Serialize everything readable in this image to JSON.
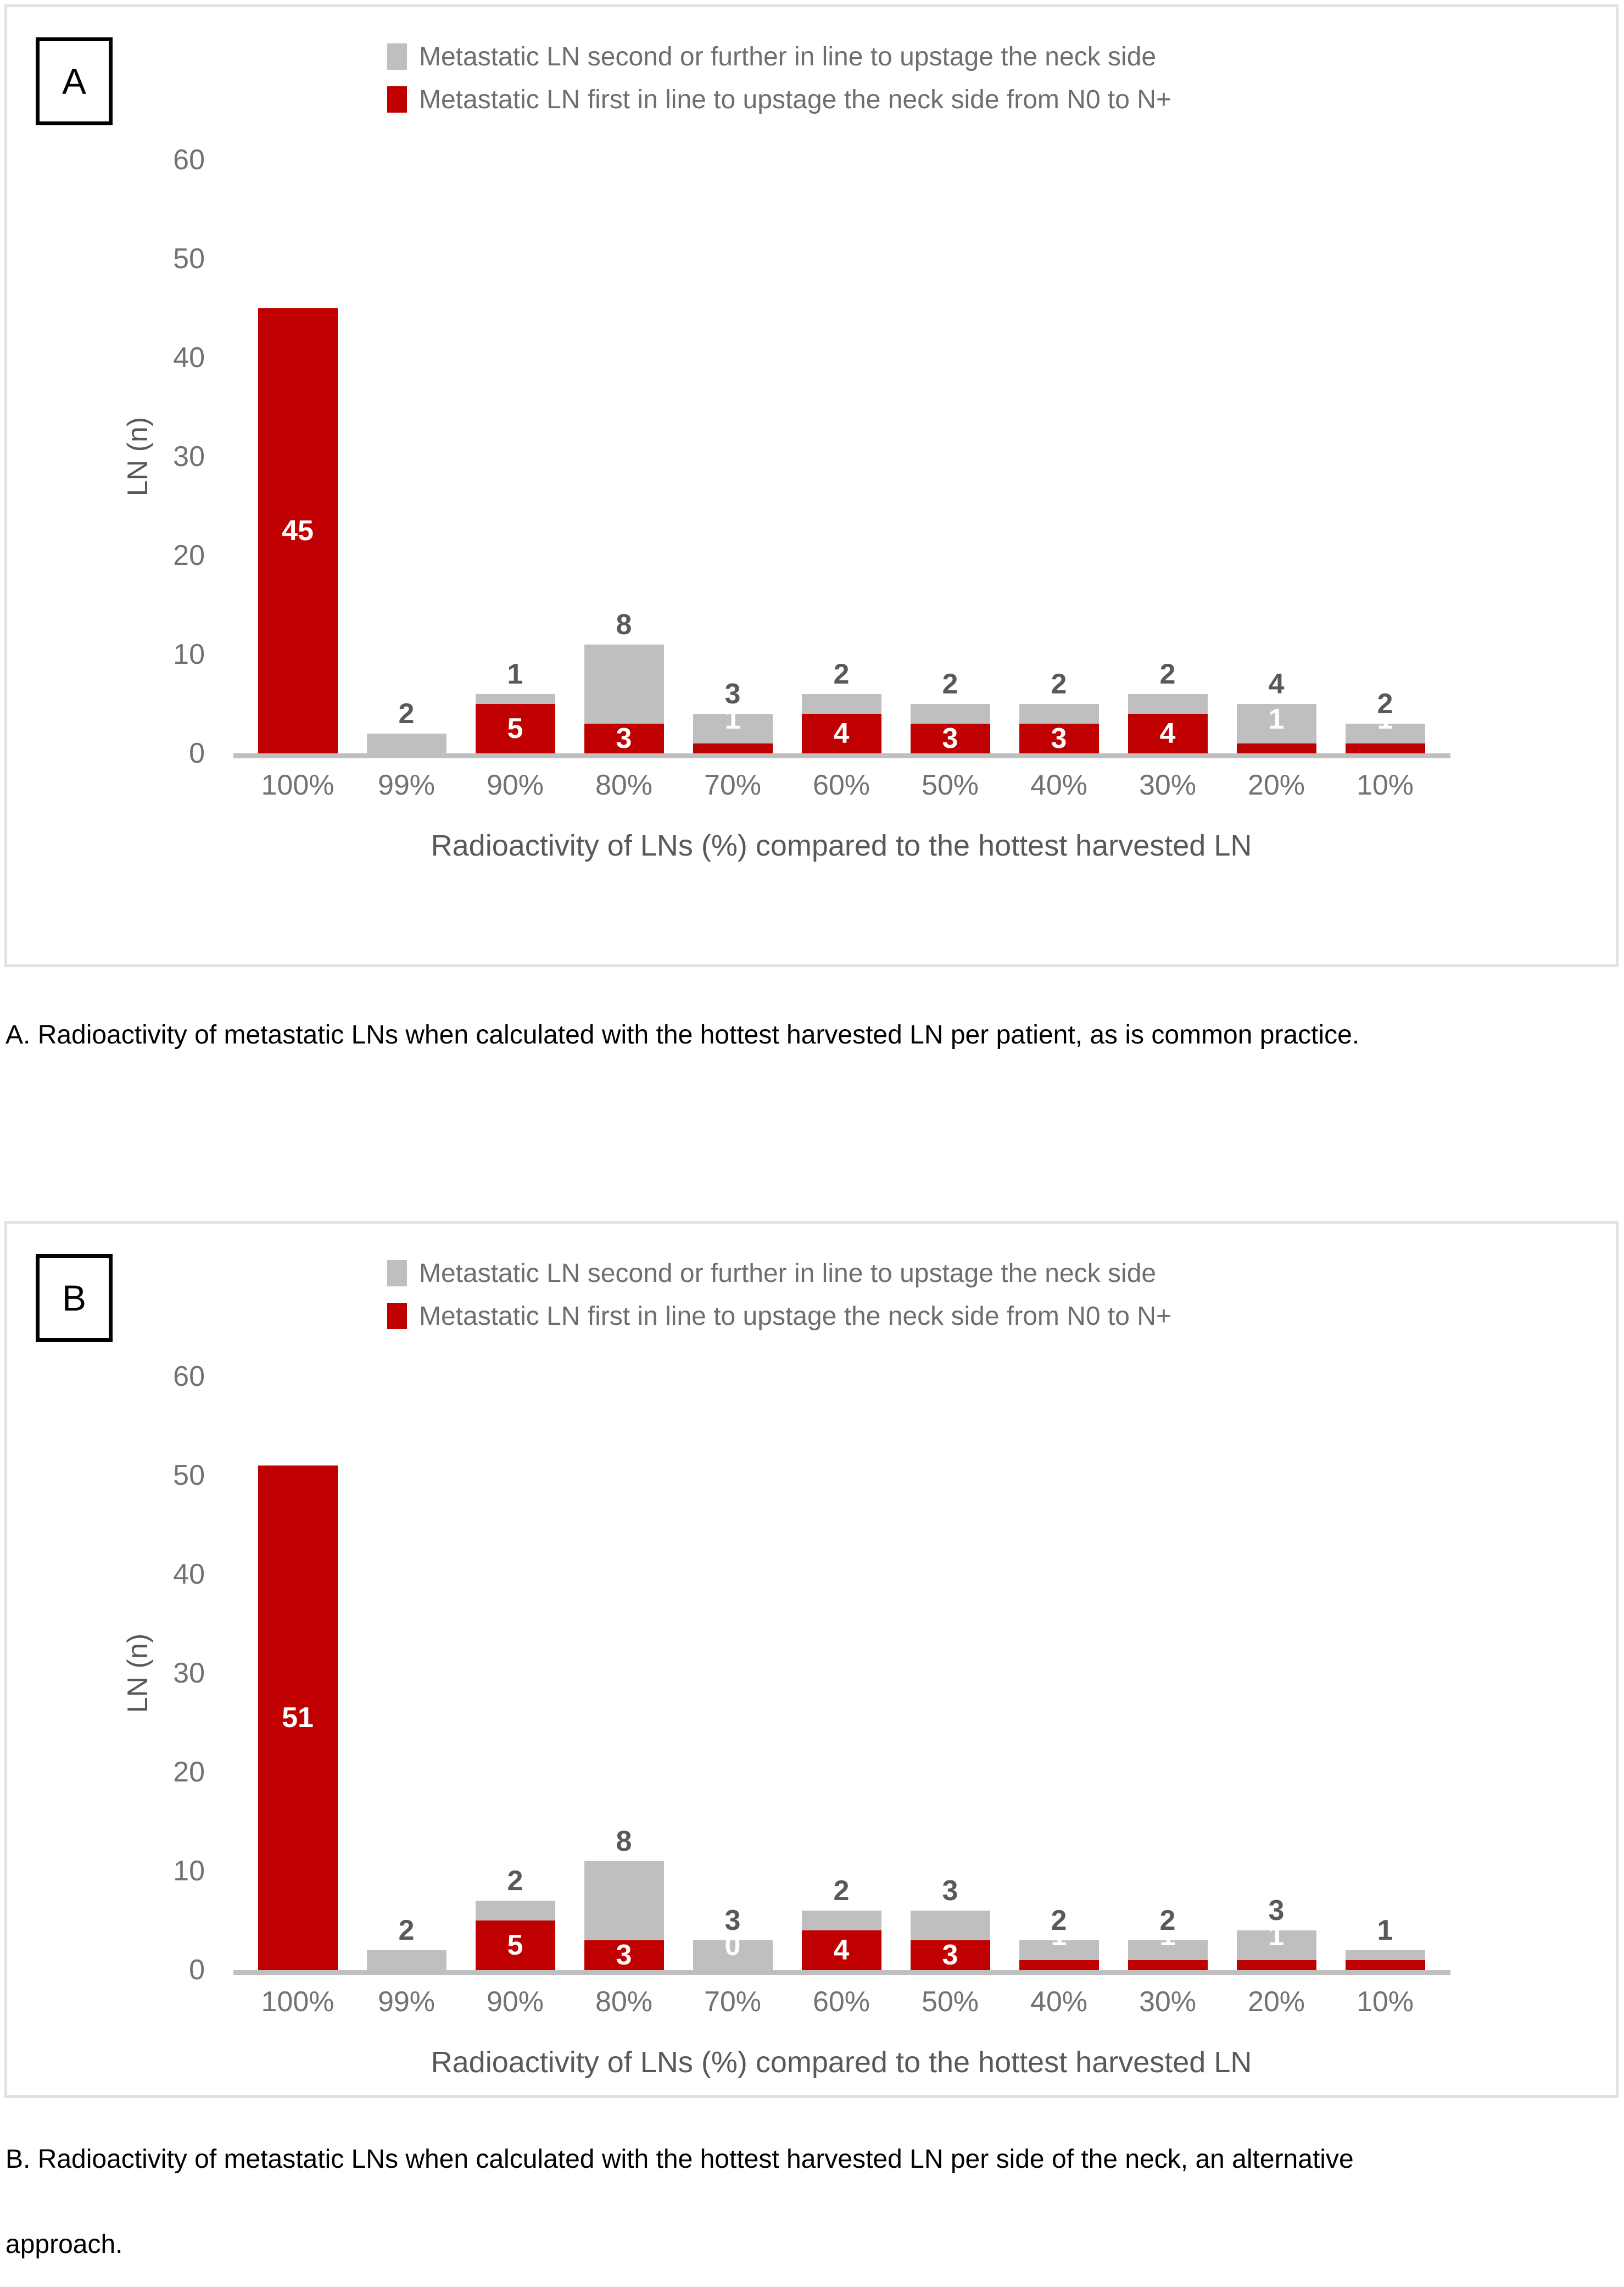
{
  "panels": [
    {
      "panel_label": "A",
      "legend": [
        {
          "label": "Metastatic LN second or further in line to upstage the neck side",
          "color": "#bfbfbf"
        },
        {
          "label": "Metastatic LN first in line to upstage the neck side from N0 to N+",
          "color": "#c00000"
        }
      ],
      "caption": "A. Radioactivity of metastatic LNs when calculated with the hottest harvested LN per patient, as is common practice."
    },
    {
      "panel_label": "B",
      "legend": [
        {
          "label": "Metastatic LN second or further in line to upstage the neck side",
          "color": "#bfbfbf"
        },
        {
          "label": "Metastatic LN first in line to upstage the neck side from N0 to N+",
          "color": "#c00000"
        }
      ],
      "caption": "B. Radioactivity of metastatic LNs when calculated with the hottest harvested LN per side of the neck, an alternative approach."
    }
  ],
  "chart_data": [
    {
      "type": "bar",
      "stacked": true,
      "panel": "A",
      "categories": [
        "100%",
        "99%",
        "90%",
        "80%",
        "70%",
        "60%",
        "50%",
        "40%",
        "30%",
        "20%",
        "10%"
      ],
      "series": [
        {
          "name": "Metastatic LN first in line to upstage the neck side from N0 to N+",
          "color": "#c00000",
          "values": [
            45,
            0,
            5,
            3,
            1,
            4,
            3,
            3,
            4,
            1,
            1
          ],
          "labels": [
            "45",
            "",
            "5",
            "3",
            "1",
            "4",
            "3",
            "3",
            "4",
            "1",
            "1"
          ]
        },
        {
          "name": "Metastatic LN second or further in line to upstage the neck side",
          "color": "#bfbfbf",
          "values": [
            0,
            2,
            1,
            8,
            3,
            2,
            2,
            2,
            2,
            4,
            2
          ],
          "labels": [
            "",
            "2",
            "1",
            "8",
            "3",
            "2",
            "2",
            "2",
            "2",
            "4",
            "2"
          ]
        }
      ],
      "xlabel": "Radioactivity of LNs (%) compared to the hottest harvested LN",
      "ylabel": "LN (n)",
      "ylim": [
        0,
        60
      ],
      "yticks": [
        0,
        10,
        20,
        30,
        40,
        50,
        60
      ],
      "grid": false,
      "legend_position": "top"
    },
    {
      "type": "bar",
      "stacked": true,
      "panel": "B",
      "categories": [
        "100%",
        "99%",
        "90%",
        "80%",
        "70%",
        "60%",
        "50%",
        "40%",
        "30%",
        "20%",
        "10%"
      ],
      "series": [
        {
          "name": "Metastatic LN first in line to upstage the neck side from N0 to N+",
          "color": "#c00000",
          "values": [
            51,
            0,
            5,
            3,
            0,
            4,
            3,
            1,
            1,
            1,
            1
          ],
          "labels": [
            "51",
            "",
            "5",
            "3",
            "0",
            "4",
            "3",
            "1",
            "1",
            "1",
            "1"
          ]
        },
        {
          "name": "Metastatic LN second or further in line to upstage the neck side",
          "color": "#bfbfbf",
          "values": [
            0,
            2,
            2,
            8,
            3,
            2,
            3,
            2,
            2,
            3,
            1
          ],
          "labels": [
            "",
            "2",
            "2",
            "8",
            "3",
            "2",
            "3",
            "2",
            "2",
            "3",
            "1"
          ]
        }
      ],
      "xlabel": "Radioactivity of LNs (%) compared to the hottest harvested LN",
      "ylabel": "LN (n)",
      "ylim": [
        0,
        60
      ],
      "yticks": [
        0,
        10,
        20,
        30,
        40,
        50,
        60
      ],
      "grid": false,
      "legend_position": "top"
    }
  ]
}
